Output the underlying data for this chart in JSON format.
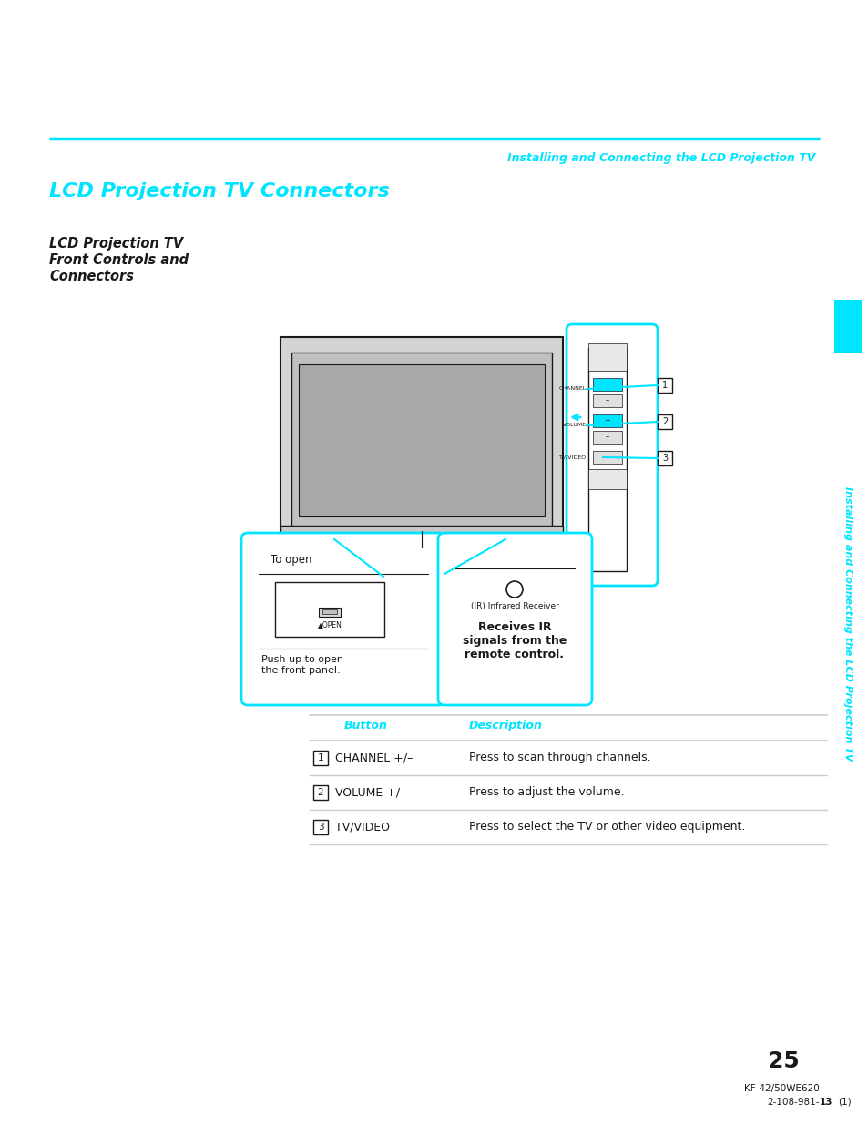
{
  "bg_color": "#ffffff",
  "cyan_color": "#00e5ff",
  "dark_color": "#1a1a1a",
  "gray_color": "#888888",
  "light_gray": "#cccccc",
  "mid_gray": "#b0b0b0",
  "page_number": "25",
  "header_italic": "Installing and Connecting the LCD Projection TV",
  "main_title": "LCD Projection TV Connectors",
  "subtitle_line1": "LCD Projection TV",
  "subtitle_line2": "Front Controls and",
  "subtitle_line3": "Connectors",
  "sidebar_text": "Installing and Connecting the LCD Projection TV",
  "table_headers": [
    "Button",
    "Description"
  ],
  "table_rows": [
    [
      "1",
      "CHANNEL +/–",
      "Press to scan through channels."
    ],
    [
      "2",
      "VOLUME +/–",
      "Press to adjust the volume."
    ],
    [
      "3",
      "TV/VIDEO",
      "Press to select the TV or other video equipment."
    ]
  ],
  "model_text": "KF-42/50WE620",
  "model_code": "2-108-981-\u00131\u0013(1)"
}
